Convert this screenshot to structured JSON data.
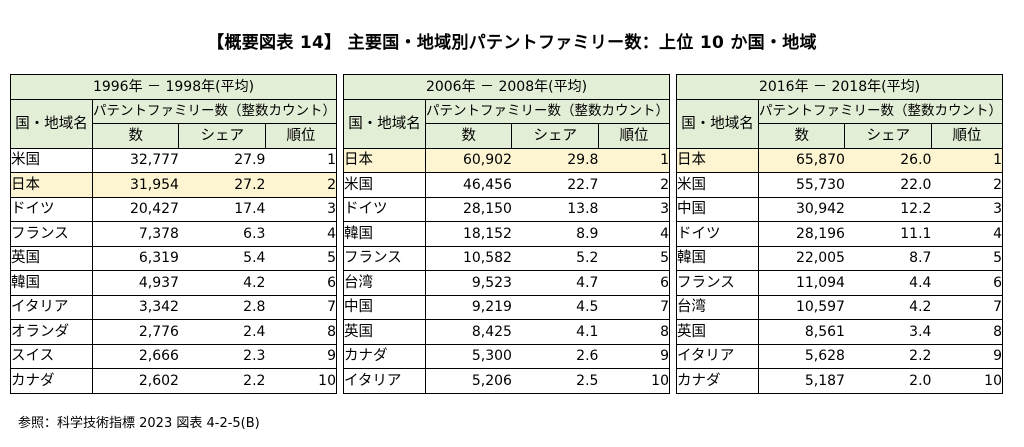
{
  "title": "【概要図表 14】 主要国・地域別パテントファミリー数：上位 10 か国・地域",
  "header": {
    "country_label": "国・地域名",
    "subheader": "パテントファミリー数（整数カウント）",
    "col_count": "数",
    "col_share": "シェア",
    "col_rank": "順位"
  },
  "colors": {
    "header_bg": "#e3eed6",
    "highlight_bg": "#fdf5d2"
  },
  "panels": [
    {
      "period": "1996年 － 1998年(平均)",
      "rows": [
        {
          "name": "米国",
          "count": "32,777",
          "share": "27.9",
          "rank": "1"
        },
        {
          "name": "日本",
          "count": "31,954",
          "share": "27.2",
          "rank": "2"
        },
        {
          "name": "ドイツ",
          "count": "20,427",
          "share": "17.4",
          "rank": "3"
        },
        {
          "name": "フランス",
          "count": "7,378",
          "share": "6.3",
          "rank": "4"
        },
        {
          "name": "英国",
          "count": "6,319",
          "share": "5.4",
          "rank": "5"
        },
        {
          "name": "韓国",
          "count": "4,937",
          "share": "4.2",
          "rank": "6"
        },
        {
          "name": "イタリア",
          "count": "3,342",
          "share": "2.8",
          "rank": "7"
        },
        {
          "name": "オランダ",
          "count": "2,776",
          "share": "2.4",
          "rank": "8"
        },
        {
          "name": "スイス",
          "count": "2,666",
          "share": "2.3",
          "rank": "9"
        },
        {
          "name": "カナダ",
          "count": "2,602",
          "share": "2.2",
          "rank": "10"
        }
      ]
    },
    {
      "period": "2006年 － 2008年(平均)",
      "rows": [
        {
          "name": "日本",
          "count": "60,902",
          "share": "29.8",
          "rank": "1"
        },
        {
          "name": "米国",
          "count": "46,456",
          "share": "22.7",
          "rank": "2"
        },
        {
          "name": "ドイツ",
          "count": "28,150",
          "share": "13.8",
          "rank": "3"
        },
        {
          "name": "韓国",
          "count": "18,152",
          "share": "8.9",
          "rank": "4"
        },
        {
          "name": "フランス",
          "count": "10,582",
          "share": "5.2",
          "rank": "5"
        },
        {
          "name": "台湾",
          "count": "9,523",
          "share": "4.7",
          "rank": "6"
        },
        {
          "name": "中国",
          "count": "9,219",
          "share": "4.5",
          "rank": "7"
        },
        {
          "name": "英国",
          "count": "8,425",
          "share": "4.1",
          "rank": "8"
        },
        {
          "name": "カナダ",
          "count": "5,300",
          "share": "2.6",
          "rank": "9"
        },
        {
          "name": "イタリア",
          "count": "5,206",
          "share": "2.5",
          "rank": "10"
        }
      ]
    },
    {
      "period": "2016年 － 2018年(平均)",
      "rows": [
        {
          "name": "日本",
          "count": "65,870",
          "share": "26.0",
          "rank": "1"
        },
        {
          "name": "米国",
          "count": "55,730",
          "share": "22.0",
          "rank": "2"
        },
        {
          "name": "中国",
          "count": "30,942",
          "share": "12.2",
          "rank": "3"
        },
        {
          "name": "ドイツ",
          "count": "28,196",
          "share": "11.1",
          "rank": "4"
        },
        {
          "name": "韓国",
          "count": "22,005",
          "share": "8.7",
          "rank": "5"
        },
        {
          "name": "フランス",
          "count": "11,094",
          "share": "4.4",
          "rank": "6"
        },
        {
          "name": "台湾",
          "count": "10,597",
          "share": "4.2",
          "rank": "7"
        },
        {
          "name": "英国",
          "count": "8,561",
          "share": "3.4",
          "rank": "8"
        },
        {
          "name": "イタリア",
          "count": "5,628",
          "share": "2.2",
          "rank": "9"
        },
        {
          "name": "カナダ",
          "count": "5,187",
          "share": "2.0",
          "rank": "10"
        }
      ]
    }
  ],
  "footnote": "参照：科学技術指標 2023 図表 4-2-5(B)"
}
